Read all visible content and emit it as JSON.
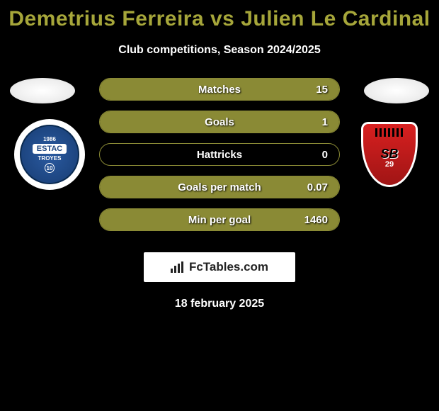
{
  "title": {
    "player1": "Demetrius Ferreira",
    "vs": "vs",
    "player2": "Julien Le Cardinal",
    "player1_color": "#a6a63a",
    "player2_color": "#a6a63a"
  },
  "subtitle": "Club competitions, Season 2024/2025",
  "accent_color": "#8a8a35",
  "background_color": "#000000",
  "text_color": "#ffffff",
  "badges": {
    "left": {
      "year": "1986",
      "name": "ESTAC",
      "city": "TROYES",
      "num": "10",
      "bg": "#1d4580"
    },
    "right": {
      "text": "SB",
      "num": "29",
      "bg": "#c01818"
    }
  },
  "stats": [
    {
      "label": "Matches",
      "value": "15",
      "fill_pct": 100
    },
    {
      "label": "Goals",
      "value": "1",
      "fill_pct": 100
    },
    {
      "label": "Hattricks",
      "value": "0",
      "fill_pct": 0
    },
    {
      "label": "Goals per match",
      "value": "0.07",
      "fill_pct": 100
    },
    {
      "label": "Min per goal",
      "value": "1460",
      "fill_pct": 100
    }
  ],
  "brand": "FcTables.com",
  "date": "18 february 2025"
}
